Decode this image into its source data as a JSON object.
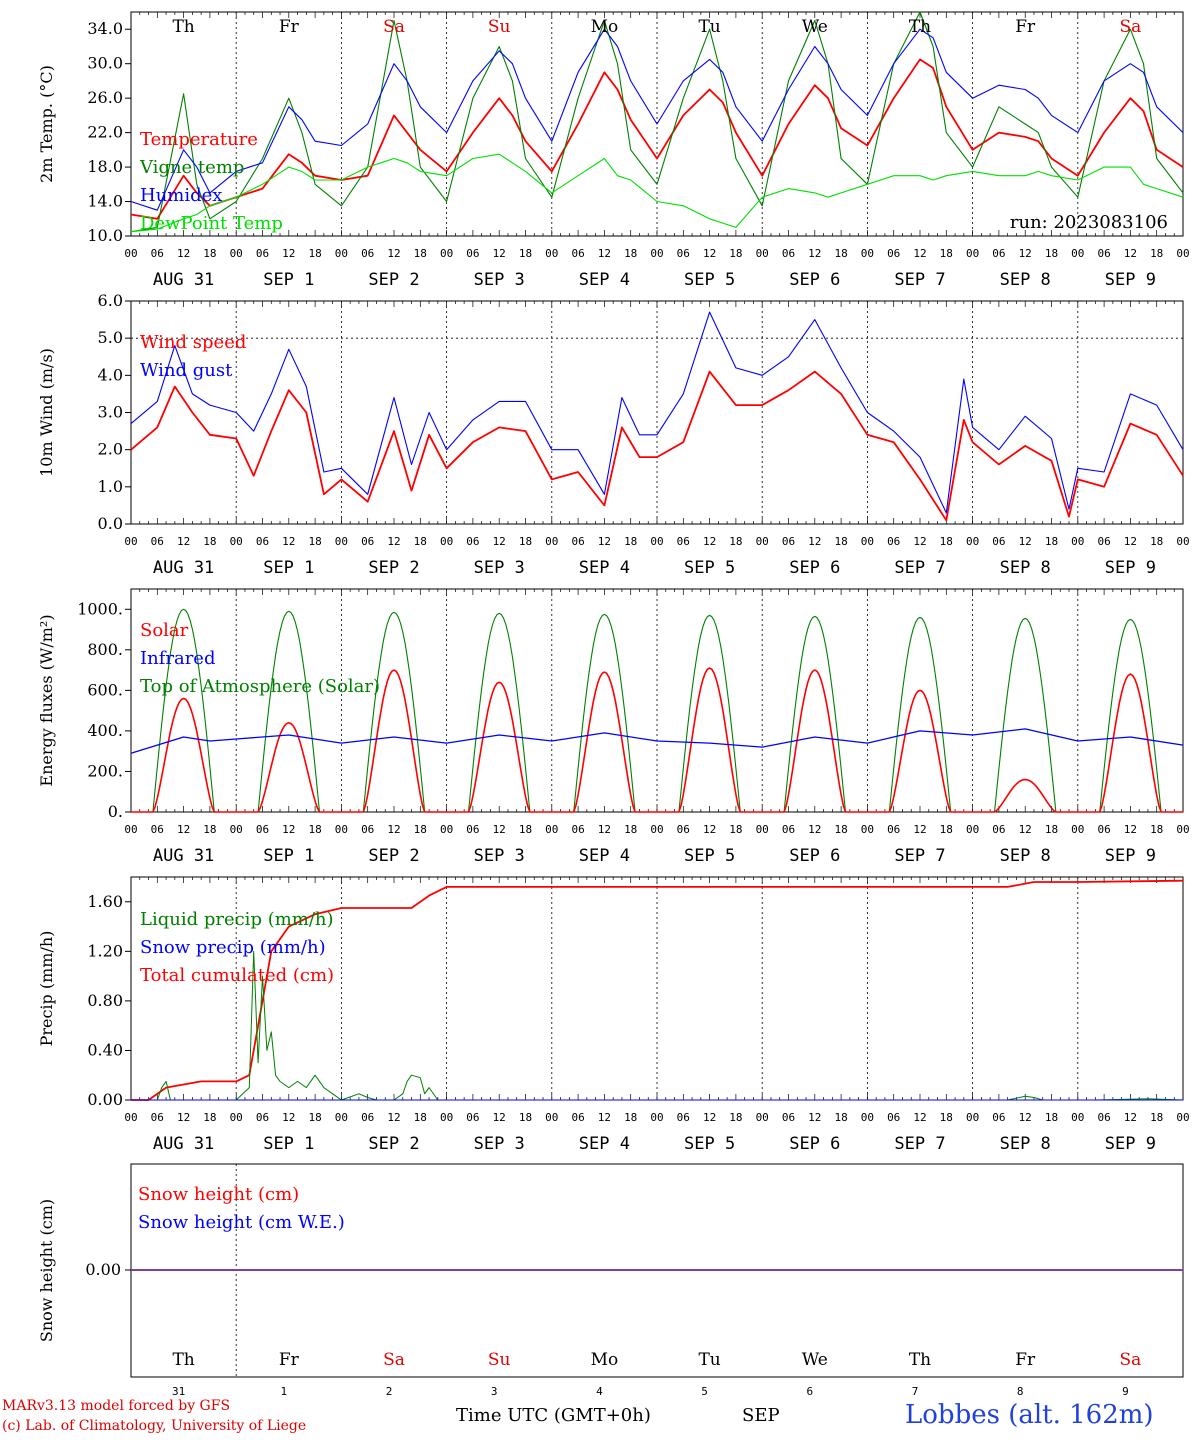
{
  "chart_data": [
    {
      "type": "line",
      "ylabel": "2m Temp. (°C)",
      "ylim": [
        10.0,
        36.0
      ],
      "yticks": [
        "10.0",
        "14.0",
        "18.0",
        "22.0",
        "26.0",
        "30.0",
        "34.0"
      ],
      "ytick_values": [
        10,
        14,
        18,
        22,
        26,
        30,
        34
      ],
      "weekdays": [
        "Th",
        "Fr",
        "Sa",
        "Su",
        "Mo",
        "Tu",
        "We",
        "Th",
        "Fr",
        "Sa"
      ],
      "weekday_colors": [
        "#000000",
        "#000000",
        "#e00000",
        "#e00000",
        "#000000",
        "#000000",
        "#000000",
        "#000000",
        "#000000",
        "#e00000"
      ],
      "legend": [
        "Temperature",
        "Vigne temp",
        "Humidex",
        "DewPoint Temp"
      ],
      "run_label": "run: 2023083106",
      "x_hours": [
        0,
        6,
        12,
        15,
        18,
        24,
        30,
        36,
        39,
        42,
        48,
        54,
        60,
        63,
        66,
        72,
        78,
        84,
        87,
        90,
        96,
        102,
        108,
        111,
        114,
        120,
        126,
        132,
        135,
        138,
        144,
        150,
        156,
        159,
        162,
        168,
        174,
        180,
        183,
        186,
        192,
        198,
        204,
        207,
        210,
        216,
        222,
        228,
        231,
        234,
        240
      ],
      "series": [
        {
          "name": "Temperature",
          "color": "#ff0000",
          "values": [
            12.5,
            12,
            17,
            15,
            13.5,
            14.5,
            15.5,
            19.5,
            18.5,
            17,
            16.5,
            17,
            24,
            22,
            20,
            17.5,
            22,
            26,
            24,
            21,
            17.5,
            23,
            29,
            27,
            23.5,
            19,
            24,
            27,
            25.5,
            22,
            17,
            23,
            27.5,
            26,
            22.5,
            20.5,
            26,
            30.5,
            29.5,
            25,
            20,
            22,
            21.5,
            21,
            19,
            17,
            22,
            26,
            24.5,
            20,
            18
          ]
        },
        {
          "name": "Vigne temp",
          "color": "#008000",
          "values": [
            10.5,
            11,
            26.5,
            16,
            12,
            14,
            19,
            26,
            22,
            16,
            13.5,
            18,
            35,
            28,
            18,
            14,
            26,
            32,
            28,
            19,
            14.5,
            26,
            35,
            30,
            20,
            16,
            26,
            34,
            28,
            19,
            13.5,
            28,
            35,
            30,
            19,
            16,
            30,
            36,
            32,
            22,
            18,
            25,
            23,
            22,
            18,
            14.5,
            28,
            34,
            30,
            19,
            15
          ]
        },
        {
          "name": "Humidex",
          "color": "#0000ff",
          "values": [
            14,
            13,
            20,
            18,
            15,
            17.5,
            18.5,
            25,
            23.5,
            21,
            20.5,
            23,
            30,
            28,
            25,
            22,
            28,
            31.5,
            30,
            26,
            21,
            29,
            34,
            32,
            28,
            23,
            28,
            30.5,
            29,
            25,
            21,
            27,
            32,
            30,
            27,
            24,
            30,
            34,
            33,
            29,
            26,
            27.5,
            27,
            26,
            24,
            22,
            28,
            30,
            29,
            25,
            22
          ]
        },
        {
          "name": "DewPoint Temp",
          "color": "#00e000",
          "values": [
            10.5,
            10.8,
            12,
            12.5,
            13.5,
            14.5,
            16,
            18,
            17.5,
            16.5,
            16.5,
            18,
            19,
            18.5,
            17.5,
            17,
            19,
            19.5,
            18.5,
            17.5,
            15,
            17,
            19,
            17,
            16.5,
            14,
            13.5,
            12,
            11.5,
            11,
            14.5,
            15.5,
            15,
            14.5,
            15,
            16,
            17,
            17,
            16.5,
            17,
            17.5,
            17,
            17,
            17.5,
            17,
            16.5,
            18,
            18,
            16,
            15.5,
            14.5
          ]
        }
      ]
    },
    {
      "type": "line",
      "ylabel": "10m Wind (m/s)",
      "ylim": [
        0.0,
        6.0
      ],
      "yticks": [
        "0.0",
        "1.0",
        "2.0",
        "3.0",
        "4.0",
        "5.0",
        "6.0"
      ],
      "ytick_values": [
        0,
        1,
        2,
        3,
        4,
        5,
        6
      ],
      "dashed_y": 5.0,
      "legend": [
        "Wind speed",
        "Wind gust"
      ],
      "x_hours": [
        0,
        6,
        10,
        14,
        18,
        24,
        28,
        32,
        36,
        40,
        44,
        48,
        54,
        60,
        64,
        68,
        72,
        78,
        84,
        90,
        96,
        102,
        108,
        112,
        116,
        120,
        126,
        132,
        138,
        144,
        150,
        156,
        162,
        168,
        174,
        180,
        186,
        190,
        192,
        198,
        204,
        210,
        214,
        216,
        222,
        228,
        234,
        240
      ],
      "series": [
        {
          "name": "Wind speed",
          "color": "#ff0000",
          "values": [
            2,
            2.6,
            3.7,
            3,
            2.4,
            2.3,
            1.3,
            2.5,
            3.6,
            3,
            0.8,
            1.2,
            0.6,
            2.5,
            0.9,
            2.4,
            1.5,
            2.2,
            2.6,
            2.5,
            1.2,
            1.4,
            0.5,
            2.6,
            1.8,
            1.8,
            2.2,
            4.1,
            3.2,
            3.2,
            3.6,
            4.1,
            3.5,
            2.4,
            2.2,
            1.2,
            0.1,
            2.8,
            2.2,
            1.6,
            2.1,
            1.7,
            0.2,
            1.2,
            1.0,
            2.7,
            2.4,
            1.3
          ]
        },
        {
          "name": "Wind gust",
          "color": "#0000ff",
          "values": [
            2.7,
            3.3,
            4.8,
            3.5,
            3.2,
            3,
            2.5,
            3.5,
            4.7,
            3.7,
            1.4,
            1.5,
            0.8,
            3.4,
            1.6,
            3.0,
            2.0,
            2.8,
            3.3,
            3.3,
            2.0,
            2.0,
            0.8,
            3.4,
            2.4,
            2.4,
            3.5,
            5.7,
            4.2,
            4.0,
            4.5,
            5.5,
            4.2,
            3.0,
            2.5,
            1.8,
            0.3,
            3.9,
            2.6,
            2.0,
            2.9,
            2.3,
            0.4,
            1.5,
            1.4,
            3.5,
            3.2,
            2.0
          ]
        }
      ]
    },
    {
      "type": "line",
      "ylabel": "Energy fluxes (W/m²)",
      "ylim": [
        0,
        1100
      ],
      "yticks": [
        "0.",
        "200.",
        "400.",
        "600.",
        "800.",
        "1000."
      ],
      "ytick_values": [
        0,
        200,
        400,
        600,
        800,
        1000
      ],
      "legend": [
        "Solar",
        "Infrared",
        "Top of Atmosphere (Solar)"
      ],
      "infrared": {
        "name": "Infrared",
        "color": "#0000ff",
        "x_hours": [
          0,
          6,
          12,
          18,
          24,
          36,
          48,
          60,
          72,
          84,
          96,
          108,
          120,
          132,
          144,
          156,
          168,
          180,
          192,
          204,
          216,
          228,
          240
        ],
        "values": [
          290,
          330,
          370,
          350,
          360,
          380,
          340,
          370,
          340,
          380,
          350,
          390,
          350,
          340,
          320,
          370,
          340,
          400,
          380,
          410,
          350,
          370,
          330
        ]
      },
      "solar_peaks": [
        560,
        440,
        700,
        640,
        690,
        710,
        700,
        600,
        160,
        680
      ],
      "toa_peaks": [
        1000,
        990,
        985,
        980,
        975,
        970,
        965,
        960,
        955,
        950
      ]
    },
    {
      "type": "line",
      "ylabel": "Precip (mm/h)",
      "ylim": [
        0.0,
        1.8
      ],
      "yticks": [
        "0.00",
        "0.40",
        "0.80",
        "1.20",
        "1.60"
      ],
      "ytick_values": [
        0,
        0.4,
        0.8,
        1.2,
        1.6
      ],
      "legend": [
        "Liquid precip (mm/h)",
        "Snow precip (mm/h)",
        "Total cumulated (cm)"
      ],
      "series": [
        {
          "name": "Total cumulated (cm)",
          "color": "#ff0000",
          "x_hours": [
            0,
            4,
            8,
            16,
            24,
            27,
            30,
            32,
            36,
            42,
            48,
            56,
            64,
            68,
            72,
            80,
            90,
            120,
            168,
            200,
            206,
            216,
            240
          ],
          "values": [
            0,
            0,
            0.1,
            0.15,
            0.15,
            0.2,
            0.8,
            1.2,
            1.4,
            1.5,
            1.55,
            1.55,
            1.55,
            1.65,
            1.72,
            1.72,
            1.72,
            1.72,
            1.72,
            1.72,
            1.76,
            1.76,
            1.77
          ]
        },
        {
          "name": "Liquid precip (mm/h)",
          "color": "#008000",
          "x_hours": [
            0,
            6,
            7,
            8,
            9,
            16,
            24,
            27,
            28,
            29,
            30,
            31,
            32,
            33,
            34,
            36,
            38,
            40,
            42,
            44,
            46,
            48,
            52,
            54,
            56,
            60,
            62,
            63,
            64,
            66,
            67,
            68,
            70,
            72,
            200,
            204,
            206,
            208,
            220,
            232,
            240
          ],
          "values": [
            0,
            0,
            0.1,
            0.15,
            0,
            0,
            0,
            0.1,
            1.2,
            0.3,
            1.0,
            0.4,
            0.55,
            0.2,
            0.15,
            0.1,
            0.15,
            0.1,
            0.2,
            0.1,
            0.05,
            0,
            0.05,
            0.02,
            0,
            0,
            0.05,
            0.15,
            0.2,
            0.18,
            0.05,
            0.1,
            0,
            0,
            0,
            0.03,
            0.02,
            0,
            0,
            0.01,
            0
          ]
        },
        {
          "name": "Snow precip (mm/h)",
          "color": "#0000ff",
          "x_hours": [
            0,
            240
          ],
          "values": [
            0,
            0
          ]
        }
      ]
    },
    {
      "type": "line",
      "ylabel": "Snow height (cm)",
      "yticks": [
        "0.00"
      ],
      "ytick_values": [
        0
      ],
      "legend": [
        "Snow height (cm)",
        "Snow height (cm W.E.)"
      ],
      "series": [
        {
          "name": "Snow height (cm)",
          "color": "#8040a0",
          "x_hours": [
            0,
            240
          ],
          "values": [
            0,
            0
          ]
        }
      ],
      "bottom_weekdays": [
        "Th",
        "Fr",
        "Sa",
        "Su",
        "Mo",
        "Tu",
        "We",
        "Th",
        "Fr",
        "Sa"
      ],
      "bottom_daynums": [
        "31",
        "1",
        "2",
        "3",
        "4",
        "5",
        "6",
        "7",
        "8",
        "9"
      ],
      "month": "SEP"
    }
  ],
  "axis": {
    "hour_labels": [
      "00",
      "06",
      "12",
      "18"
    ],
    "end_hour_label": "00",
    "date_labels": [
      "AUG 31",
      "SEP  1",
      "SEP  2",
      "SEP  3",
      "SEP  4",
      "SEP  5",
      "SEP  6",
      "SEP  7",
      "SEP  8",
      "SEP  9"
    ]
  },
  "footer": {
    "credit_line1": "MARv3.13 model forced by GFS",
    "credit_line2": "(c) Lab. of Climatology, University of Liege",
    "time_label": "Time UTC (GMT+0h)",
    "month": "SEP",
    "station": "Lobbes (alt. 162m)"
  },
  "colors": {
    "red": "#ff0000",
    "green": "#008000",
    "blue": "#0000ff",
    "lightgreen": "#00e000"
  }
}
